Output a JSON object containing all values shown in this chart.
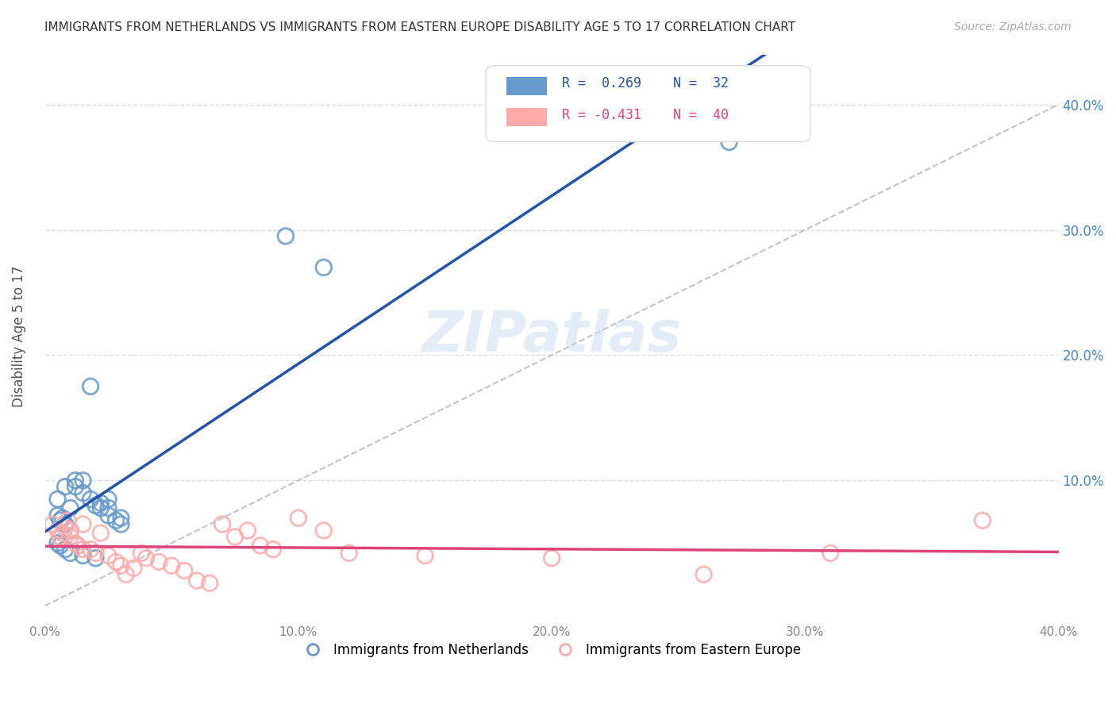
{
  "title": "IMMIGRANTS FROM NETHERLANDS VS IMMIGRANTS FROM EASTERN EUROPE DISABILITY AGE 5 TO 17 CORRELATION CHART",
  "source": "Source: ZipAtlas.com",
  "ylabel": "Disability Age 5 to 17",
  "x_ticks": [
    0.0,
    0.1,
    0.2,
    0.3,
    0.4
  ],
  "y_ticks": [
    0.0,
    0.1,
    0.2,
    0.3,
    0.4
  ],
  "xlim": [
    0.0,
    0.4
  ],
  "ylim": [
    -0.01,
    0.44
  ],
  "background_color": "#ffffff",
  "grid_color": "#dddddd",
  "blue_color": "#6699cc",
  "blue_line_color": "#2255aa",
  "pink_color": "#ffaaaa",
  "pink_line_color": "#dd4477",
  "watermark": "ZIPatlas",
  "blue_scatter_x": [
    0.005,
    0.008,
    0.012,
    0.015,
    0.018,
    0.02,
    0.022,
    0.025,
    0.005,
    0.006,
    0.007,
    0.008,
    0.01,
    0.01,
    0.012,
    0.015,
    0.018,
    0.022,
    0.025,
    0.028,
    0.03,
    0.005,
    0.006,
    0.008,
    0.01,
    0.015,
    0.02,
    0.025,
    0.03,
    0.095,
    0.11,
    0.27
  ],
  "blue_scatter_y": [
    0.085,
    0.095,
    0.1,
    0.09,
    0.085,
    0.08,
    0.082,
    0.078,
    0.072,
    0.068,
    0.07,
    0.065,
    0.06,
    0.078,
    0.095,
    0.1,
    0.175,
    0.078,
    0.072,
    0.068,
    0.065,
    0.05,
    0.048,
    0.045,
    0.042,
    0.04,
    0.038,
    0.085,
    0.07,
    0.295,
    0.27,
    0.37
  ],
  "pink_scatter_x": [
    0.003,
    0.005,
    0.006,
    0.007,
    0.008,
    0.009,
    0.01,
    0.01,
    0.012,
    0.013,
    0.015,
    0.015,
    0.018,
    0.02,
    0.022,
    0.025,
    0.028,
    0.03,
    0.032,
    0.035,
    0.038,
    0.04,
    0.045,
    0.05,
    0.055,
    0.06,
    0.065,
    0.07,
    0.075,
    0.08,
    0.085,
    0.09,
    0.1,
    0.11,
    0.12,
    0.15,
    0.2,
    0.26,
    0.31,
    0.37
  ],
  "pink_scatter_y": [
    0.065,
    0.06,
    0.055,
    0.058,
    0.062,
    0.068,
    0.06,
    0.055,
    0.05,
    0.048,
    0.045,
    0.065,
    0.045,
    0.042,
    0.058,
    0.04,
    0.035,
    0.032,
    0.025,
    0.03,
    0.042,
    0.038,
    0.035,
    0.032,
    0.028,
    0.02,
    0.018,
    0.065,
    0.055,
    0.06,
    0.048,
    0.045,
    0.07,
    0.06,
    0.042,
    0.04,
    0.038,
    0.025,
    0.042,
    0.068
  ],
  "legend_label_blue": "Immigrants from Netherlands",
  "legend_label_pink": "Immigrants from Eastern Europe",
  "title_color": "#333333",
  "axis_label_color": "#555555",
  "right_tick_color": "#4488cc"
}
